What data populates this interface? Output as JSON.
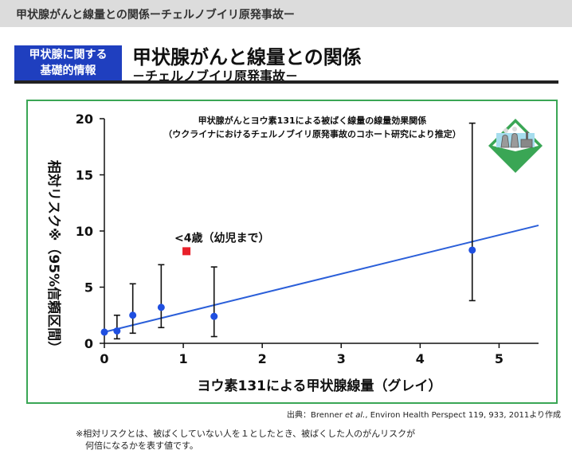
{
  "header": {
    "topbar_title": "甲状腺がんと線量との関係ーチェルノブイリ原発事故ー",
    "badge_line1": "甲状腺に関する",
    "badge_line2": "基礎的情報",
    "main_title": "甲状腺がんと線量との関係",
    "sub_title": "－チェルノブイリ原発事故－"
  },
  "colors": {
    "badge": "#1f3fbf",
    "frame": "#3aa655",
    "trend": "#2b5fd9",
    "points": "#1f4fe0",
    "highlight": "#e8202a"
  },
  "chart_data": {
    "type": "scatter",
    "title": "甲状腺がんとヨウ素131による被ばく線量の線量効果関係",
    "subtitle": "（ウクライナにおけるチェルノブイリ原発事故のコホート研究により推定）",
    "xlabel": "ヨウ素131による甲状腺線量（グレイ）",
    "ylabel": "相対リスク※（95%信頼区間）",
    "xlim": [
      0,
      5.5
    ],
    "ylim": [
      0,
      20
    ],
    "xticks": [
      0,
      1,
      2,
      3,
      4,
      5
    ],
    "yticks": [
      0,
      5,
      10,
      15,
      20
    ],
    "grid": false,
    "points": [
      {
        "x": 0.0,
        "y": 1.0,
        "lo": 1.0,
        "hi": 1.0
      },
      {
        "x": 0.16,
        "y": 1.1,
        "lo": 0.4,
        "hi": 2.5
      },
      {
        "x": 0.36,
        "y": 2.5,
        "lo": 0.9,
        "hi": 5.3
      },
      {
        "x": 0.72,
        "y": 3.2,
        "lo": 1.4,
        "hi": 7.0
      },
      {
        "x": 1.39,
        "y": 2.4,
        "lo": 0.6,
        "hi": 6.8
      },
      {
        "x": 4.66,
        "y": 8.3,
        "lo": 3.8,
        "hi": 19.6
      }
    ],
    "trend_line": {
      "x": [
        0,
        5.5
      ],
      "y": [
        1.0,
        10.5
      ]
    },
    "highlight": {
      "x": 1.04,
      "y": 8.2,
      "label": "<4歳（幼児まで）"
    },
    "legend": "none"
  },
  "footer": {
    "source": "出典：Brenner et al., Environ Health Perspect 119, 933, 2011より作成",
    "note_line1": "※相対リスクとは、被ばくしていない人を１としたとき、被ばくした人のがんリスクが",
    "note_line2": "何倍になるかを表す値です。"
  }
}
